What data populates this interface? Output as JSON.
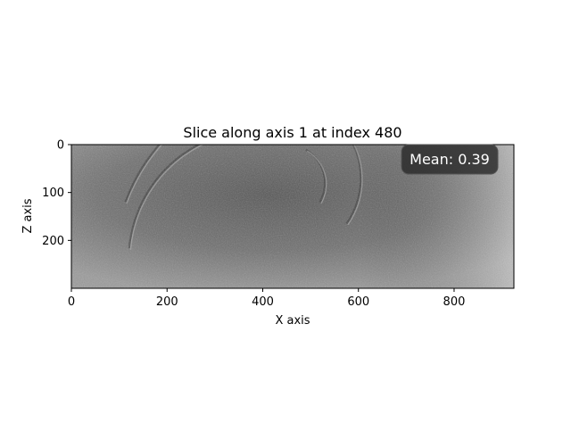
{
  "chart_data": {
    "type": "heatmap",
    "title": "Slice along axis 1 at index 480",
    "xlabel": "X axis",
    "ylabel": "Z axis",
    "xlim": [
      0,
      925
    ],
    "ylim": [
      300,
      0
    ],
    "x_ticks": [
      0,
      200,
      400,
      600,
      800
    ],
    "y_ticks": [
      0,
      100,
      200
    ],
    "colormap": "gray",
    "grid": false,
    "annotation": {
      "label": "Mean: 0.39",
      "placement": "top-right"
    },
    "features": [
      {
        "name": "large-arc",
        "cx": 470,
        "cz": 250,
        "r": 380,
        "start_deg": 200,
        "end_deg": 250
      },
      {
        "name": "inner-arc",
        "cx": 390,
        "cz": 240,
        "r": 270,
        "start_deg": 185,
        "end_deg": 250
      },
      {
        "name": "top-right-arc",
        "cx": 440,
        "cz": 70,
        "r": 165,
        "start_deg": 300,
        "end_deg": 395
      },
      {
        "name": "mid-arc",
        "cx": 450,
        "cz": 80,
        "r": 80,
        "start_deg": 300,
        "end_deg": 390
      }
    ]
  }
}
